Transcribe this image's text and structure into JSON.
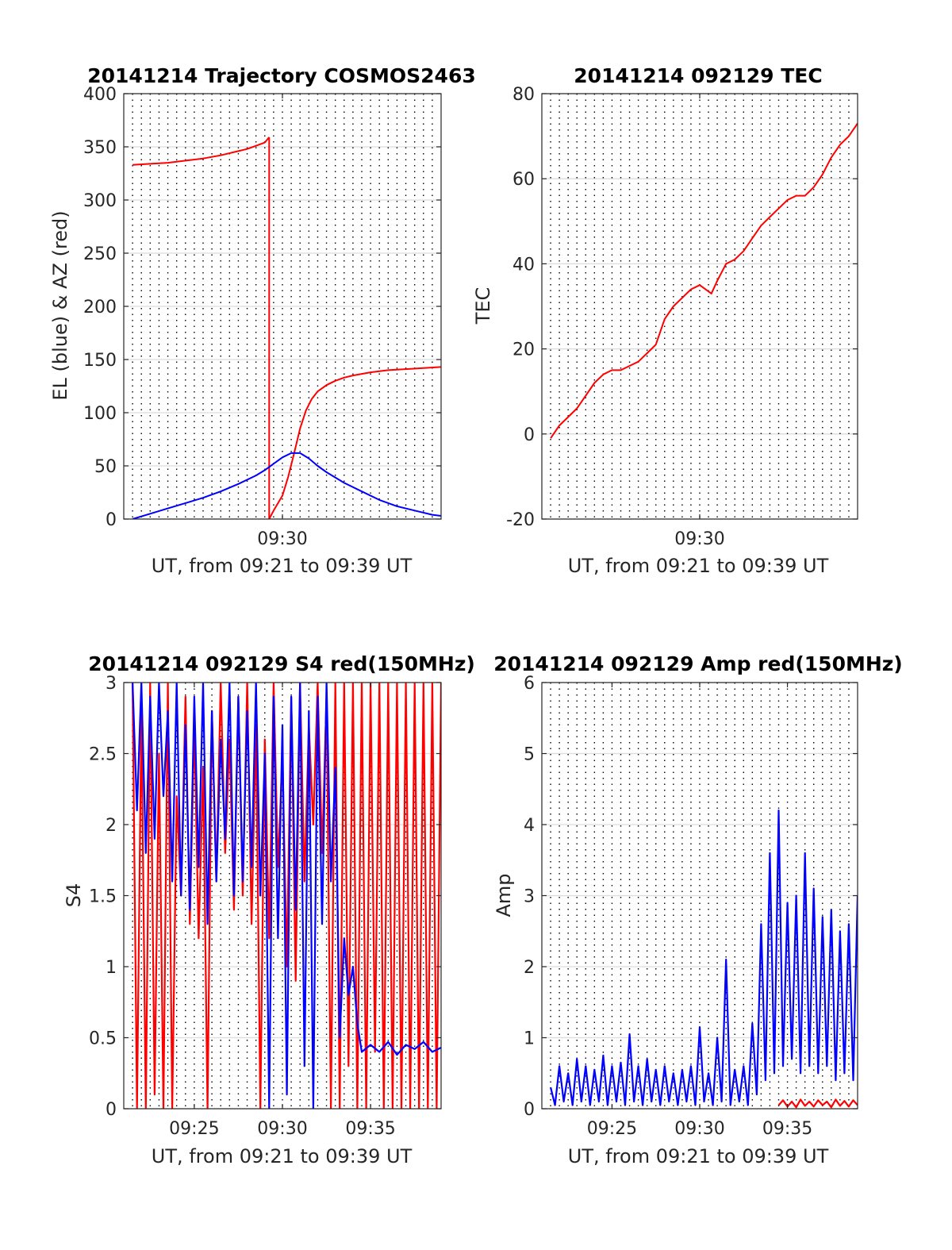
{
  "chart_data": [
    {
      "id": "trajectory",
      "type": "line",
      "title": "20141214 Trajectory COSMOS2463",
      "xlabel": "UT, from 09:21 to 09:39 UT",
      "ylabel": "EL (blue) & AZ (red)",
      "xlim": [
        "09:21",
        "09:39"
      ],
      "ylim": [
        0,
        400
      ],
      "yticks": [
        "0",
        "50",
        "100",
        "150",
        "200",
        "250",
        "300",
        "350",
        "400"
      ],
      "xticks": [
        "09:30"
      ],
      "grid": true,
      "series": [
        {
          "color": "#ff0000",
          "segments": [
            {
              "x": [
                "09:21:30",
                "09:22:30",
                "09:23:30",
                "09:24:30",
                "09:25:30",
                "09:26:30",
                "09:27:30",
                "09:28:00",
                "09:28:30",
                "09:29:00",
                "09:29:15"
              ],
              "y": [
                333,
                334,
                335,
                337,
                339,
                342,
                346,
                348,
                351,
                354,
                359
              ]
            },
            {
              "x": [
                "09:29:15",
                "09:29:15"
              ],
              "y": [
                359,
                0
              ]
            },
            {
              "x": [
                "09:29:15",
                "09:29:30",
                "09:30:00",
                "09:30:20",
                "09:30:40",
                "09:31:00",
                "09:31:20",
                "09:31:40",
                "09:32:00",
                "09:32:30",
                "09:33:00",
                "09:33:30",
                "09:34:00",
                "09:35:00",
                "09:36:00",
                "09:37:00",
                "09:38:00",
                "09:39:00"
              ],
              "y": [
                0,
                8,
                22,
                40,
                62,
                85,
                102,
                113,
                120,
                126,
                130,
                133,
                135,
                138,
                140,
                141,
                142,
                143
              ]
            }
          ]
        },
        {
          "color": "#0000ff",
          "segments": [
            {
              "x": [
                "09:21:30",
                "09:22:30",
                "09:23:30",
                "09:24:30",
                "09:25:30",
                "09:26:30",
                "09:27:30",
                "09:28:30",
                "09:29:00",
                "09:29:30",
                "09:30:00",
                "09:30:30",
                "09:31:00",
                "09:31:30",
                "09:32:00",
                "09:32:30",
                "09:33:30",
                "09:34:30",
                "09:35:30",
                "09:36:30",
                "09:37:30",
                "09:38:30",
                "09:39:00"
              ],
              "y": [
                0,
                5,
                10,
                15,
                20,
                26,
                33,
                41,
                46,
                52,
                58,
                62,
                62,
                57,
                50,
                44,
                34,
                26,
                18,
                12,
                8,
                4,
                3
              ]
            }
          ]
        }
      ]
    },
    {
      "id": "tec",
      "type": "line",
      "title": "20141214 092129 TEC",
      "xlabel": "UT, from 09:21 to 09:39 UT",
      "ylabel": "TEC",
      "xlim": [
        "09:21",
        "09:39"
      ],
      "ylim": [
        -20,
        80
      ],
      "yticks": [
        "-20",
        "0",
        "20",
        "40",
        "60",
        "80"
      ],
      "xticks": [
        "09:30"
      ],
      "grid": true,
      "series": [
        {
          "color": "#ff0000",
          "segments": [
            {
              "x": [
                "09:21:30",
                "09:22:00",
                "09:22:30",
                "09:23:00",
                "09:23:30",
                "09:24:00",
                "09:24:30",
                "09:25:00",
                "09:25:30",
                "09:26:00",
                "09:26:30",
                "09:27:00",
                "09:27:30",
                "09:28:00",
                "09:28:30",
                "09:29:00",
                "09:29:30",
                "09:30:00",
                "09:30:20",
                "09:30:40",
                "09:31:00",
                "09:31:30",
                "09:32:00",
                "09:32:30",
                "09:33:00",
                "09:33:30",
                "09:34:00",
                "09:34:30",
                "09:35:00",
                "09:35:30",
                "09:36:00",
                "09:36:30",
                "09:37:00",
                "09:37:30",
                "09:38:00",
                "09:38:30",
                "09:39:00"
              ],
              "y": [
                -1,
                2,
                4,
                6,
                9,
                12,
                14,
                15,
                15,
                16,
                17,
                19,
                21,
                27,
                30,
                32,
                34,
                35,
                34,
                33,
                36,
                40,
                41,
                43,
                46,
                49,
                51,
                53,
                55,
                56,
                56,
                58,
                61,
                65,
                68,
                70,
                73
              ]
            }
          ]
        }
      ]
    },
    {
      "id": "s4",
      "type": "line",
      "title": "20141214 092129 S4 red(150MHz)",
      "xlabel": "UT, from 09:21 to 09:39 UT",
      "ylabel": "S4",
      "xlim": [
        "09:21",
        "09:39"
      ],
      "ylim": [
        0,
        3
      ],
      "yticks": [
        "0",
        "0.5",
        "1",
        "1.5",
        "2",
        "2.5",
        "3"
      ],
      "xticks": [
        "09:25",
        "09:30",
        "09:35"
      ],
      "grid": true,
      "series": [
        {
          "color": "#ff0000",
          "segments": [
            {
              "x": [
                "09:21:30",
                "09:21:45",
                "09:22:00",
                "09:22:15",
                "09:22:30",
                "09:22:45",
                "09:23:00",
                "09:23:15",
                "09:23:30",
                "09:23:45",
                "09:24:00",
                "09:24:15",
                "09:24:30",
                "09:24:45",
                "09:25:00",
                "09:25:15",
                "09:25:30",
                "09:25:45",
                "09:26:00",
                "09:26:15",
                "09:26:30",
                "09:26:45",
                "09:27:00",
                "09:27:15",
                "09:27:30",
                "09:27:45",
                "09:28:00",
                "09:28:15",
                "09:28:30",
                "09:28:45",
                "09:29:00",
                "09:29:15",
                "09:29:30",
                "09:29:45",
                "09:30:00",
                "09:30:15",
                "09:30:30",
                "09:30:45",
                "09:31:00",
                "09:31:15",
                "09:31:30",
                "09:31:45",
                "09:32:00",
                "09:32:15",
                "09:32:30",
                "09:32:45",
                "09:33:00",
                "09:33:15",
                "09:33:30",
                "09:33:45",
                "09:34:00",
                "09:34:15",
                "09:34:30",
                "09:34:45",
                "09:35:00",
                "09:35:15",
                "09:35:30",
                "09:35:45",
                "09:36:00",
                "09:36:15",
                "09:36:30",
                "09:36:45",
                "09:37:00",
                "09:37:15",
                "09:37:30",
                "09:37:45",
                "09:38:00",
                "09:38:15",
                "09:38:30",
                "09:38:45",
                "09:39:00"
              ],
              "y": [
                3,
                0,
                2.8,
                0,
                3,
                0.1,
                2.5,
                0,
                3,
                0,
                2.2,
                1.5,
                2.9,
                1.3,
                2.7,
                1.2,
                2.4,
                0,
                2.8,
                1.6,
                3,
                1.8,
                2.6,
                1.4,
                2.9,
                1.5,
                3,
                1.3,
                2.7,
                0,
                2.6,
                1.2,
                3,
                1.7,
                2.5,
                1,
                2.9,
                0.9,
                3,
                1.6,
                2.7,
                2,
                3,
                1.8,
                2.9,
                0,
                3,
                0,
                3,
                0.3,
                3,
                0,
                3,
                0,
                3,
                0.4,
                3,
                0,
                3,
                0,
                3,
                0,
                3,
                0,
                3,
                0,
                3,
                0,
                3,
                0,
                3
              ]
            }
          ]
        },
        {
          "color": "#0000ff",
          "segments": [
            {
              "x": [
                "09:21:30",
                "09:21:45",
                "09:22:00",
                "09:22:15",
                "09:22:30",
                "09:22:45",
                "09:23:00",
                "09:23:15",
                "09:23:30",
                "09:23:45",
                "09:24:00",
                "09:24:15",
                "09:24:30",
                "09:24:45",
                "09:25:00",
                "09:25:15",
                "09:25:30",
                "09:25:45",
                "09:26:00",
                "09:26:15",
                "09:26:30",
                "09:26:45",
                "09:27:00",
                "09:27:15",
                "09:27:30",
                "09:27:45",
                "09:28:00",
                "09:28:15",
                "09:28:30",
                "09:28:45",
                "09:29:00",
                "09:29:15",
                "09:29:30",
                "09:29:45",
                "09:30:00",
                "09:30:15",
                "09:30:30",
                "09:30:45",
                "09:31:00",
                "09:31:15",
                "09:31:30",
                "09:31:45",
                "09:32:00",
                "09:32:15",
                "09:32:30",
                "09:32:45",
                "09:33:00",
                "09:33:15",
                "09:33:30",
                "09:33:45",
                "09:34:00",
                "09:34:15",
                "09:34:30",
                "09:35:00",
                "09:35:30",
                "09:36:00",
                "09:36:30",
                "09:37:00",
                "09:37:30",
                "09:38:00",
                "09:38:30",
                "09:39:00"
              ],
              "y": [
                3,
                2.1,
                3,
                1.8,
                2.9,
                1.9,
                3,
                2.2,
                2.8,
                1.6,
                3,
                1.5,
                2.7,
                1.4,
                2.9,
                1.7,
                3,
                1.3,
                2.8,
                1.6,
                2.6,
                1.9,
                3,
                1.5,
                2.9,
                1.6,
                2.8,
                1.7,
                3,
                1.5,
                2.5,
                0,
                2.9,
                1.2,
                2.7,
                0.1,
                2.9,
                1.4,
                3,
                0.3,
                2.8,
                0,
                2.9,
                1.3,
                3,
                1.6,
                2.4,
                0.5,
                1.2,
                0.8,
                1.0,
                0.6,
                0.4,
                0.45,
                0.4,
                0.47,
                0.38,
                0.45,
                0.42,
                0.47,
                0.4,
                0.43
              ]
            }
          ]
        }
      ]
    },
    {
      "id": "amp",
      "type": "line",
      "title": "20141214 092129 Amp red(150MHz)",
      "xlabel": "UT, from 09:21 to 09:39 UT",
      "ylabel": "Amp",
      "xlim": [
        "09:21",
        "09:39"
      ],
      "ylim": [
        0,
        6
      ],
      "yticks": [
        "0",
        "1",
        "2",
        "3",
        "4",
        "5",
        "6"
      ],
      "xticks": [
        "09:25",
        "09:30",
        "09:35"
      ],
      "grid": true,
      "series": [
        {
          "color": "#ff0000",
          "segments": [
            {
              "x": [
                "09:34:30",
                "09:34:45",
                "09:35:00",
                "09:35:15",
                "09:35:30",
                "09:35:45",
                "09:36:00",
                "09:36:15",
                "09:36:30",
                "09:36:45",
                "09:37:00",
                "09:37:15",
                "09:37:30",
                "09:37:45",
                "09:38:00",
                "09:38:15",
                "09:38:30",
                "09:38:45",
                "09:39:00"
              ],
              "y": [
                0.05,
                0.12,
                0.03,
                0.1,
                0.02,
                0.13,
                0.04,
                0.1,
                0.03,
                0.12,
                0.05,
                0.1,
                0.02,
                0.13,
                0.04,
                0.11,
                0.03,
                0.12,
                0.05
              ]
            }
          ]
        },
        {
          "color": "#0000ff",
          "segments": [
            {
              "x": [
                "09:21:30",
                "09:21:45",
                "09:22:00",
                "09:22:15",
                "09:22:30",
                "09:22:45",
                "09:23:00",
                "09:23:15",
                "09:23:30",
                "09:23:45",
                "09:24:00",
                "09:24:15",
                "09:24:30",
                "09:24:45",
                "09:25:00",
                "09:25:15",
                "09:25:30",
                "09:25:45",
                "09:26:00",
                "09:26:15",
                "09:26:30",
                "09:26:45",
                "09:27:00",
                "09:27:15",
                "09:27:30",
                "09:27:45",
                "09:28:00",
                "09:28:15",
                "09:28:30",
                "09:28:45",
                "09:29:00",
                "09:29:15",
                "09:29:30",
                "09:29:45",
                "09:30:00",
                "09:30:15",
                "09:30:30",
                "09:30:45",
                "09:31:00",
                "09:31:15",
                "09:31:30",
                "09:31:45",
                "09:32:00",
                "09:32:15",
                "09:32:30",
                "09:32:45",
                "09:33:00",
                "09:33:15",
                "09:33:30",
                "09:33:45",
                "09:34:00",
                "09:34:15",
                "09:34:30",
                "09:34:45",
                "09:35:00",
                "09:35:15",
                "09:35:30",
                "09:35:45",
                "09:36:00",
                "09:36:15",
                "09:36:30",
                "09:36:45",
                "09:37:00",
                "09:37:15",
                "09:37:30",
                "09:37:45",
                "09:38:00",
                "09:38:15",
                "09:38:30",
                "09:38:45",
                "09:39:00"
              ],
              "y": [
                0.3,
                0.05,
                0.6,
                0.1,
                0.5,
                0.05,
                0.7,
                0.1,
                0.6,
                0.05,
                0.55,
                0.1,
                0.75,
                0.05,
                0.6,
                0.1,
                0.65,
                0.05,
                1.05,
                0.1,
                0.6,
                0.05,
                0.7,
                0.1,
                0.55,
                0.05,
                0.6,
                0.1,
                0.5,
                0.05,
                0.55,
                0.1,
                0.6,
                0.05,
                1.15,
                0.1,
                0.5,
                0.05,
                1.0,
                0.1,
                2.1,
                0.05,
                0.55,
                0.1,
                0.6,
                0.05,
                1.2,
                0.2,
                2.6,
                0.4,
                3.6,
                0.5,
                4.2,
                0.6,
                2.9,
                0.7,
                3.0,
                0.5,
                3.6,
                0.6,
                3.1,
                0.5,
                2.7,
                0.6,
                2.8,
                0.4,
                2.5,
                0.5,
                2.6,
                0.4,
                3.0
              ]
            }
          ]
        }
      ]
    }
  ]
}
